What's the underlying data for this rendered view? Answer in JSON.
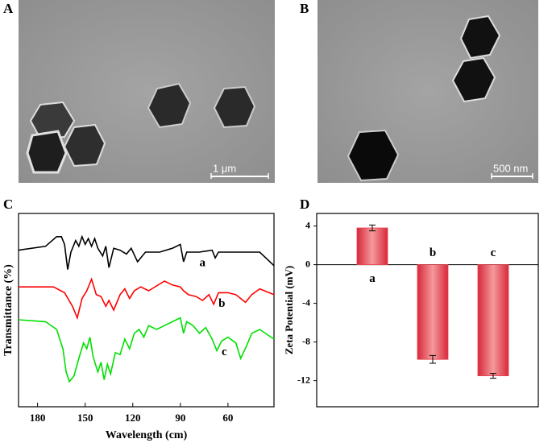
{
  "panels": {
    "labels": [
      "A",
      "B",
      "C",
      "D"
    ],
    "scale_bars": [
      "1 μm",
      "500 nm"
    ]
  },
  "chart_data": [
    {
      "type": "line",
      "ylabel": "Transmittance (%)",
      "xlabel": "Wavelength (cm)",
      "xlim": [
        192,
        31
      ],
      "xticks": [
        180,
        150,
        120,
        90,
        60
      ],
      "ylim": [
        0,
        100
      ],
      "series": [
        {
          "name": "a",
          "color": "#000000",
          "x": [
            192,
            175,
            168,
            165,
            163,
            161,
            159,
            156,
            154,
            152,
            150,
            148,
            146,
            144,
            142,
            139,
            137,
            135,
            132,
            128,
            124,
            121,
            117,
            112,
            103,
            95,
            90,
            88,
            86,
            78,
            70,
            68,
            66,
            55,
            45,
            40,
            31
          ],
          "values": [
            81,
            83,
            88,
            88,
            84,
            71,
            80,
            86,
            83,
            88,
            84,
            87,
            83,
            87,
            82,
            78,
            83,
            72,
            82,
            81,
            79,
            82,
            75,
            80,
            80,
            82,
            84,
            75,
            80,
            80,
            81,
            77,
            80,
            80,
            80,
            80,
            73
          ]
        },
        {
          "name": "b",
          "color": "#ff0000",
          "x": [
            192,
            175,
            170,
            163,
            158,
            155,
            152,
            149,
            146,
            143,
            140,
            137,
            135,
            132,
            128,
            125,
            122,
            119,
            115,
            110,
            100,
            95,
            90,
            88,
            85,
            80,
            76,
            72,
            69,
            66,
            60,
            55,
            52,
            49,
            45,
            40,
            31
          ],
          "values": [
            62,
            62,
            62,
            59,
            52,
            46,
            56,
            60,
            66,
            58,
            57,
            52,
            55,
            50,
            58,
            61,
            56,
            60,
            62,
            60,
            65,
            63,
            62,
            60,
            58,
            57,
            55,
            58,
            53,
            59,
            59,
            58,
            56,
            54,
            58,
            61,
            58
          ]
        },
        {
          "name": "c",
          "color": "#00e000",
          "x": [
            192,
            175,
            168,
            164,
            162,
            160,
            157,
            154,
            151,
            149,
            147,
            145,
            142,
            140,
            138,
            136,
            134,
            131,
            128,
            125,
            122,
            119,
            116,
            113,
            110,
            105,
            100,
            95,
            90,
            88,
            86,
            82,
            78,
            74,
            70,
            67,
            64,
            60,
            55,
            52,
            48,
            45,
            40,
            31
          ],
          "values": [
            45,
            44,
            40,
            30,
            18,
            13,
            16,
            25,
            33,
            30,
            36,
            26,
            18,
            23,
            14,
            22,
            17,
            28,
            27,
            35,
            30,
            38,
            40,
            36,
            42,
            40,
            42,
            44,
            46,
            38,
            44,
            42,
            38,
            41,
            35,
            29,
            34,
            36,
            33,
            25,
            32,
            38,
            40,
            35
          ]
        }
      ]
    },
    {
      "type": "bar",
      "ylabel": "Zeta Potential (mV)",
      "categories": [
        "a",
        "b",
        "c"
      ],
      "values": [
        3.8,
        -9.8,
        -11.5
      ],
      "errors": [
        0.3,
        0.4,
        0.25
      ],
      "color": "#e8404c",
      "ylim": [
        -14.7,
        5.3
      ],
      "yticks": [
        4,
        0,
        -4,
        -8,
        -12
      ]
    }
  ]
}
